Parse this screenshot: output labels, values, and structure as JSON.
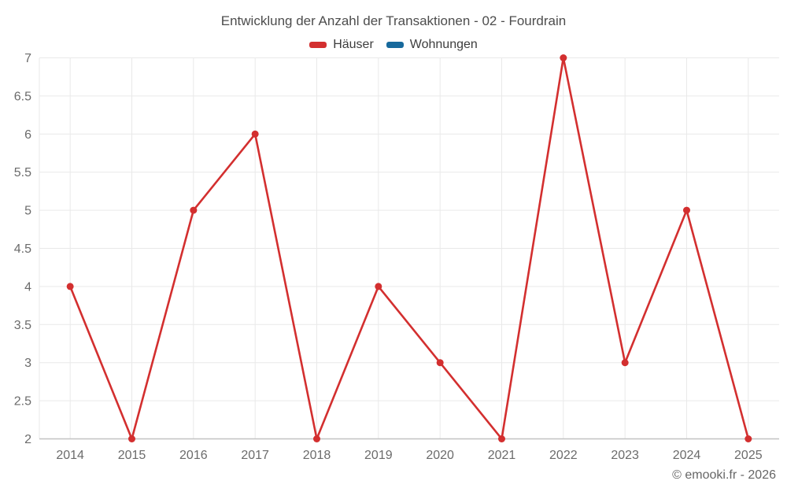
{
  "title": "Entwicklung der Anzahl der Transaktionen - 02 - Fourdrain",
  "legend": [
    {
      "label": "Häuser",
      "color": "#d32f2f"
    },
    {
      "label": "Wohnungen",
      "color": "#17699c"
    }
  ],
  "footer": "© emooki.fr - 2026",
  "colors": {
    "grid": "#e9e9e9",
    "axis_line": "#c2c2c2",
    "tick_text": "#6b6b6b",
    "title_text": "#4d4d4d",
    "legend_text": "#3d3d3d"
  },
  "chart_data": {
    "type": "line",
    "title": "Entwicklung der Anzahl der Transaktionen - 02 - Fourdrain",
    "categories": [
      "2014",
      "2015",
      "2016",
      "2017",
      "2018",
      "2019",
      "2020",
      "2021",
      "2022",
      "2023",
      "2024",
      "2025"
    ],
    "series": [
      {
        "name": "Häuser",
        "color": "#d32f2f",
        "values": [
          4,
          2,
          5,
          6,
          2,
          4,
          3,
          2,
          7,
          3,
          5,
          2
        ]
      },
      {
        "name": "Wohnungen",
        "color": "#17699c",
        "values": []
      }
    ],
    "xlabel": "",
    "ylabel": "",
    "ylim": [
      2,
      7
    ],
    "ytick_step": 0.5,
    "grid": true,
    "legend_position": "top",
    "point_radius": 4.5,
    "line_width": 2.6
  }
}
